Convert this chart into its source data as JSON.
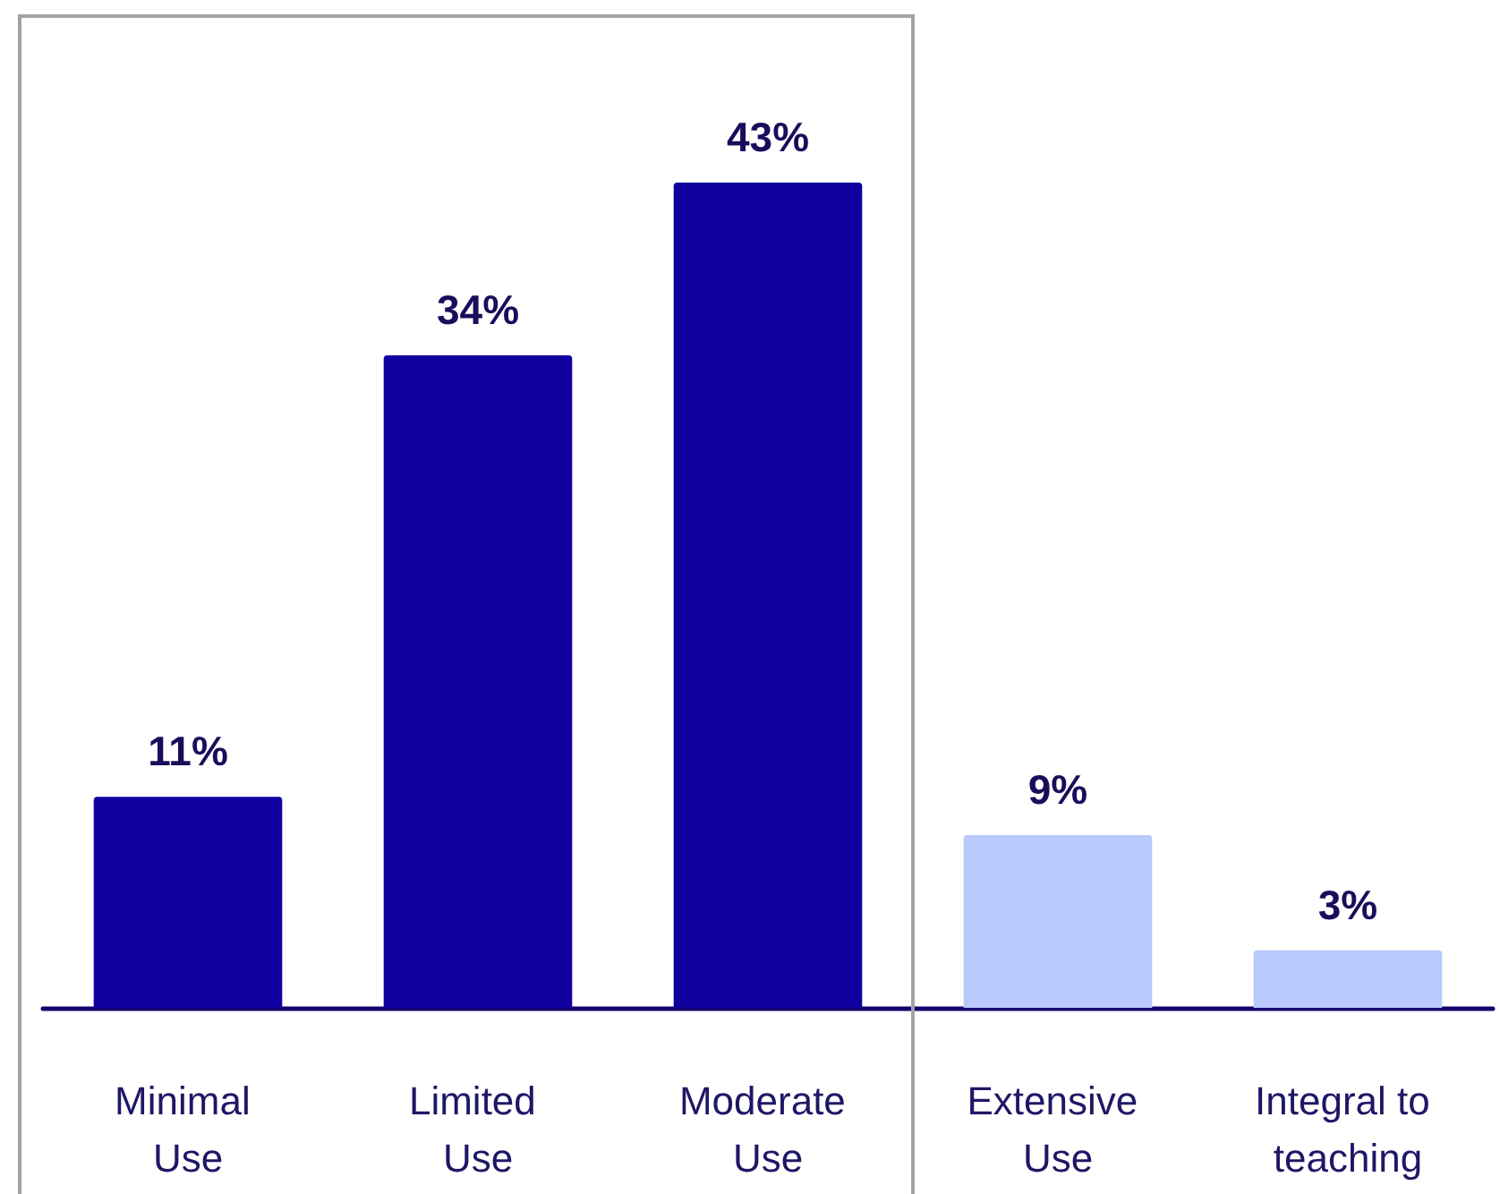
{
  "chart_data": {
    "type": "bar",
    "categories": [
      "Minimal Use",
      "Limited Use",
      "Moderate Use",
      "Extensive Use",
      "Integral to teaching"
    ],
    "values": [
      11,
      34,
      43,
      9,
      3
    ],
    "colors": [
      "#10009f",
      "#10009f",
      "#10009f",
      "#b9c9fb",
      "#b9c9fb"
    ],
    "value_labels": [
      "11%",
      "34%",
      "43%",
      "9%",
      "3%"
    ]
  }
}
